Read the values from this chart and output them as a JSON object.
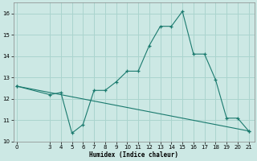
{
  "xlabel": "Humidex (Indice chaleur)",
  "bg_color": "#cce8e4",
  "grid_color": "#aad4ce",
  "line_color": "#1a7a6e",
  "line1_x": [
    0,
    3,
    4,
    5,
    6,
    7,
    8,
    9,
    10,
    11,
    12,
    13,
    14,
    15,
    16,
    17,
    18,
    19,
    20,
    21
  ],
  "line1_y": [
    12.6,
    12.2,
    12.3,
    10.4,
    10.8,
    12.4,
    12.4,
    12.8,
    13.3,
    13.3,
    14.5,
    15.4,
    15.4,
    16.1,
    14.1,
    14.1,
    12.9,
    11.1,
    11.1,
    10.5
  ],
  "line2_x": [
    0,
    21
  ],
  "line2_y": [
    12.6,
    10.5
  ],
  "ylim": [
    10,
    16.5
  ],
  "xlim": [
    -0.3,
    21.5
  ],
  "yticks": [
    10,
    11,
    12,
    13,
    14,
    15,
    16
  ],
  "xticks": [
    0,
    3,
    4,
    5,
    6,
    7,
    8,
    9,
    10,
    11,
    12,
    13,
    14,
    15,
    16,
    17,
    18,
    19,
    20,
    21
  ]
}
